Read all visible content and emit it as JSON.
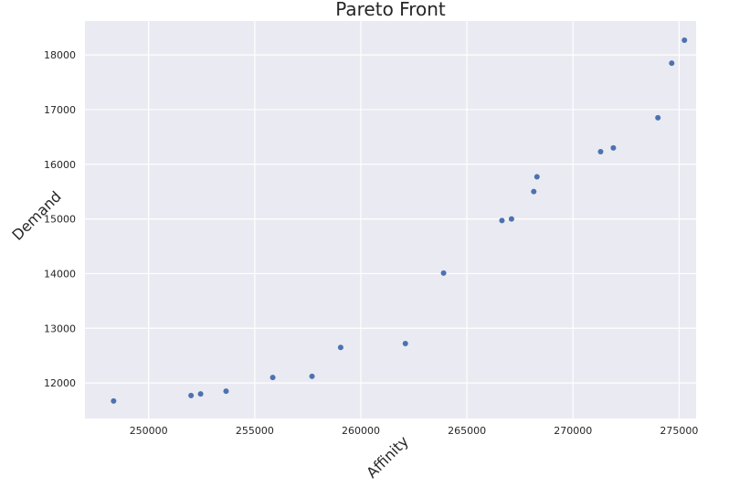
{
  "chart_data": {
    "type": "scatter",
    "title": "Pareto Front",
    "xlabel": "Affinity",
    "ylabel": "Demand",
    "xlim": [
      247000,
      275800
    ],
    "ylim": [
      11350,
      18620
    ],
    "xticks": [
      250000,
      255000,
      260000,
      265000,
      270000,
      275000
    ],
    "yticks": [
      12000,
      13000,
      14000,
      15000,
      16000,
      17000,
      18000
    ],
    "xtick_labels": [
      "250000",
      "255000",
      "260000",
      "265000",
      "270000",
      "275000"
    ],
    "ytick_labels": [
      "12000",
      "13000",
      "14000",
      "15000",
      "16000",
      "17000",
      "18000"
    ],
    "grid": true,
    "legend": "none",
    "colors": {
      "background": "#eaeaf2",
      "grid": "#ffffff",
      "marker": "#4c72b0"
    },
    "points": [
      {
        "x": 248350,
        "y": 11670
      },
      {
        "x": 252000,
        "y": 11770
      },
      {
        "x": 252450,
        "y": 11800
      },
      {
        "x": 253650,
        "y": 11850
      },
      {
        "x": 255850,
        "y": 12100
      },
      {
        "x": 257700,
        "y": 12120
      },
      {
        "x": 259050,
        "y": 12650
      },
      {
        "x": 262100,
        "y": 12720
      },
      {
        "x": 263900,
        "y": 14010
      },
      {
        "x": 266650,
        "y": 14970
      },
      {
        "x": 267100,
        "y": 15000
      },
      {
        "x": 268150,
        "y": 15500
      },
      {
        "x": 268300,
        "y": 15770
      },
      {
        "x": 271300,
        "y": 16230
      },
      {
        "x": 271900,
        "y": 16300
      },
      {
        "x": 274000,
        "y": 16850
      },
      {
        "x": 274650,
        "y": 17850
      },
      {
        "x": 275250,
        "y": 18270
      }
    ]
  }
}
